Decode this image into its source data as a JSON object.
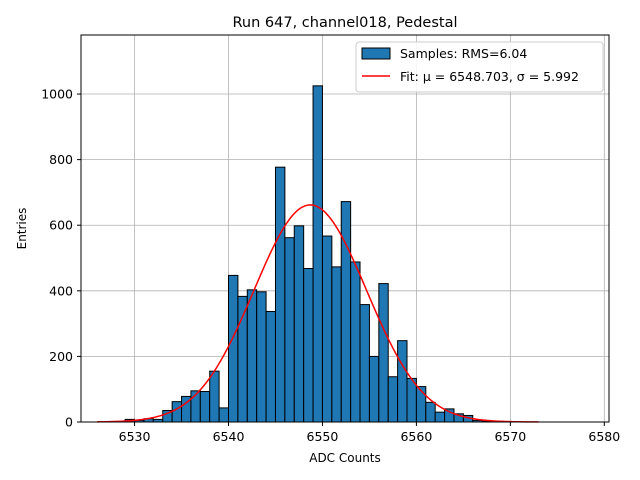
{
  "chart_data": {
    "type": "bar",
    "title": "Run 647, channel018, Pedestal",
    "xlabel": "ADC Counts",
    "ylabel": "Entries",
    "xlim": [
      6524.3,
      6580.5
    ],
    "ylim": [
      0,
      1180
    ],
    "x_ticks": [
      6530,
      6540,
      6550,
      6560,
      6570,
      6580
    ],
    "y_ticks": [
      0,
      200,
      400,
      600,
      800,
      1000
    ],
    "grid": true,
    "bin_width": 1,
    "bins": [
      {
        "x": 6529,
        "value": 8
      },
      {
        "x": 6530,
        "value": 5
      },
      {
        "x": 6531,
        "value": 10
      },
      {
        "x": 6532,
        "value": 8
      },
      {
        "x": 6533,
        "value": 35
      },
      {
        "x": 6534,
        "value": 62
      },
      {
        "x": 6535,
        "value": 78
      },
      {
        "x": 6536,
        "value": 95
      },
      {
        "x": 6537,
        "value": 93
      },
      {
        "x": 6538,
        "value": 155
      },
      {
        "x": 6539,
        "value": 43
      },
      {
        "x": 6540,
        "value": 447
      },
      {
        "x": 6541,
        "value": 383
      },
      {
        "x": 6542,
        "value": 403
      },
      {
        "x": 6543,
        "value": 397
      },
      {
        "x": 6544,
        "value": 337
      },
      {
        "x": 6545,
        "value": 777
      },
      {
        "x": 6546,
        "value": 562
      },
      {
        "x": 6547,
        "value": 598
      },
      {
        "x": 6548,
        "value": 468
      },
      {
        "x": 6549,
        "value": 1025
      },
      {
        "x": 6550,
        "value": 567
      },
      {
        "x": 6551,
        "value": 473
      },
      {
        "x": 6552,
        "value": 672
      },
      {
        "x": 6553,
        "value": 488
      },
      {
        "x": 6554,
        "value": 358
      },
      {
        "x": 6555,
        "value": 200
      },
      {
        "x": 6556,
        "value": 422
      },
      {
        "x": 6557,
        "value": 138
      },
      {
        "x": 6558,
        "value": 248
      },
      {
        "x": 6559,
        "value": 133
      },
      {
        "x": 6560,
        "value": 108
      },
      {
        "x": 6561,
        "value": 60
      },
      {
        "x": 6562,
        "value": 30
      },
      {
        "x": 6563,
        "value": 40
      },
      {
        "x": 6564,
        "value": 25
      },
      {
        "x": 6565,
        "value": 20
      },
      {
        "x": 6566,
        "value": 5
      },
      {
        "x": 6567,
        "value": 3
      }
    ],
    "fit": {
      "mu": 6548.703,
      "sigma": 5.992,
      "amplitude": 662,
      "x_range": [
        6526,
        6573
      ]
    },
    "legend": {
      "position": "top-right",
      "entries": [
        {
          "label": "Samples: RMS=6.04",
          "kind": "patch"
        },
        {
          "label": "Fit: μ = 6548.703, σ = 5.992",
          "kind": "line"
        }
      ]
    },
    "colors": {
      "bar": "#1f77b4",
      "bar_edge": "#000000",
      "fit": "#ff0000",
      "grid": "#b0b0b0"
    }
  }
}
